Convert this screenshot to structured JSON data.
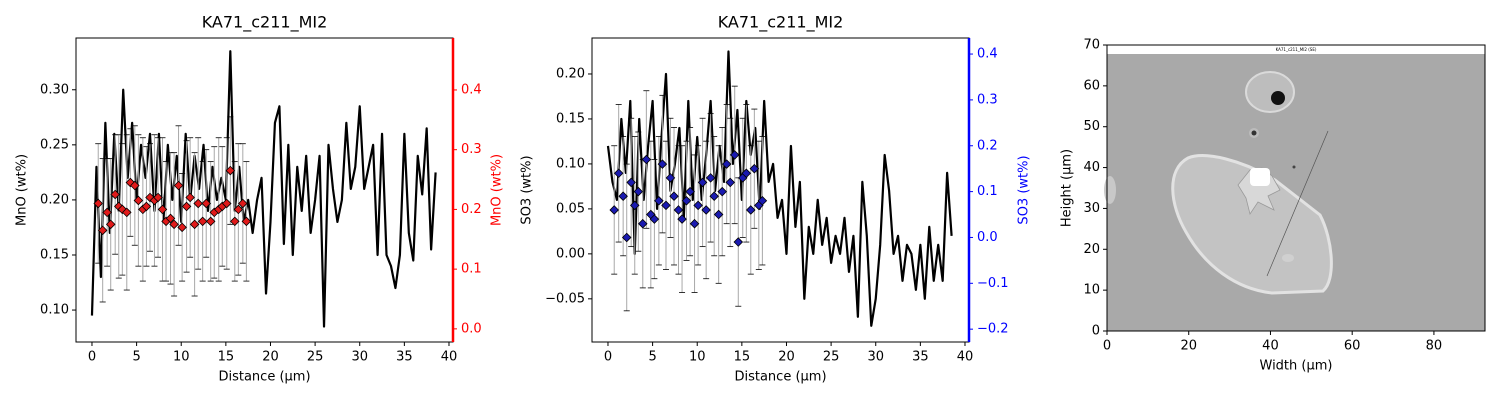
{
  "chart_data": [
    {
      "type": "line",
      "title": "KA71_c211_MI2",
      "xlabel": "Distance (µm)",
      "ylabel": "MnO (wt%)",
      "y2label": "MnO (wt%)",
      "y2color": "#ff0000",
      "x": [
        0,
        0.5,
        1,
        1.5,
        2,
        2.5,
        3,
        3.5,
        4,
        4.5,
        5,
        5.5,
        6,
        6.5,
        7,
        7.5,
        8,
        8.5,
        9,
        9.5,
        10,
        10.5,
        11,
        11.5,
        12,
        12.5,
        13,
        13.5,
        14,
        14.5,
        15,
        15.5,
        16,
        16.5,
        17,
        17.5,
        18,
        18.5,
        19,
        19.5,
        20,
        20.5,
        21,
        21.5,
        22,
        22.5,
        23,
        23.5,
        24,
        24.5,
        25,
        25.5,
        26,
        26.5,
        27,
        27.5,
        28,
        28.5,
        29,
        29.5,
        30,
        30.5,
        31,
        31.5,
        32,
        32.5,
        33,
        33.5,
        34,
        34.5,
        35,
        35.5,
        36,
        36.5,
        37,
        37.5,
        38,
        38.5
      ],
      "xlim": [
        -1.79,
        40.45
      ],
      "xticks": [
        0,
        5,
        10,
        15,
        20,
        25,
        30,
        35,
        40
      ],
      "ylim": [
        0.071,
        0.347
      ],
      "yticks": [
        {
          "value": 0.1,
          "label": "0.10"
        },
        0.15,
        {
          "value": 0.2,
          "label": "0.20"
        },
        0.25,
        {
          "value": 0.3,
          "label": "0.30"
        }
      ],
      "y2lim": [
        -0.022,
        0.487
      ],
      "y2ticks": [
        {
          "value": 0,
          "label": "0.0"
        },
        0.1,
        0.2,
        0.3,
        0.4
      ],
      "series": [
        {
          "color": "#000000",
          "values": [
            0.095,
            0.23,
            0.13,
            0.27,
            0.17,
            0.26,
            0.19,
            0.3,
            0.22,
            0.27,
            0.2,
            0.25,
            0.22,
            0.26,
            0.19,
            0.26,
            0.18,
            0.25,
            0.2,
            0.24,
            0.18,
            0.26,
            0.2,
            0.24,
            0.21,
            0.25,
            0.19,
            0.23,
            0.2,
            0.22,
            0.2,
            0.335,
            0.19,
            0.23,
            0.18,
            0.2,
            0.17,
            0.2,
            0.22,
            0.115,
            0.18,
            0.27,
            0.285,
            0.16,
            0.25,
            0.15,
            0.23,
            0.19,
            0.24,
            0.17,
            0.2,
            0.24,
            0.085,
            0.25,
            0.21,
            0.18,
            0.2,
            0.27,
            0.21,
            0.23,
            0.285,
            0.21,
            0.23,
            0.25,
            0.15,
            0.26,
            0.15,
            0.14,
            0.12,
            0.15,
            0.26,
            0.17,
            0.145,
            0.24,
            0.205,
            0.265,
            0.155,
            0.225
          ]
        },
        {
          "axis": "y2",
          "marker": "diamond",
          "color": "#e01a1a",
          "error_color": "#a8a8a8",
          "x": [
            0.7,
            1.2,
            1.7,
            2.1,
            2.6,
            3.0,
            3.4,
            3.9,
            4.3,
            4.8,
            5.2,
            5.7,
            6.1,
            6.5,
            7.0,
            7.4,
            7.9,
            8.3,
            8.8,
            9.2,
            9.7,
            10.1,
            10.6,
            11.0,
            11.5,
            11.9,
            12.4,
            12.8,
            13.3,
            13.7,
            14.2,
            14.6,
            15.1,
            15.5,
            16.0,
            16.4,
            16.9,
            17.3
          ],
          "values": [
            0.21,
            0.165,
            0.195,
            0.175,
            0.225,
            0.205,
            0.2,
            0.195,
            0.245,
            0.24,
            0.215,
            0.2,
            0.205,
            0.22,
            0.215,
            0.22,
            0.2,
            0.18,
            0.185,
            0.175,
            0.24,
            0.17,
            0.205,
            0.22,
            0.175,
            0.21,
            0.18,
            0.21,
            0.18,
            0.195,
            0.2,
            0.205,
            0.21,
            0.265,
            0.18,
            0.2,
            0.21,
            0.18
          ],
          "errors": [
            0.1,
            0.12,
            0.09,
            0.11,
            0.1,
            0.12,
            0.11,
            0.13,
            0.09,
            0.1,
            0.11,
            0.12,
            0.1,
            0.09,
            0.11,
            0.1,
            0.12,
            0.1,
            0.11,
            0.12,
            0.1,
            0.09,
            0.11,
            0.1,
            0.12,
            0.11,
            0.1,
            0.09,
            0.1,
            0.11,
            0.12,
            0.1,
            0.11,
            0.09,
            0.1,
            0.11,
            0.1,
            0.1
          ]
        }
      ]
    },
    {
      "type": "line",
      "title": "KA71_c211_MI2",
      "xlabel": "Distance (µm)",
      "ylabel": "SO3 (wt%)",
      "y2label": "SO3 (wt%)",
      "y2color": "#0000ff",
      "x": [
        0,
        0.5,
        1,
        1.5,
        2,
        2.5,
        3,
        3.5,
        4,
        4.5,
        5,
        5.5,
        6,
        6.5,
        7,
        7.5,
        8,
        8.5,
        9,
        9.5,
        10,
        10.5,
        11,
        11.5,
        12,
        12.5,
        13,
        13.5,
        14,
        14.5,
        15,
        15.5,
        16,
        16.5,
        17,
        17.5,
        18,
        18.5,
        19,
        19.5,
        20,
        20.5,
        21,
        21.5,
        22,
        22.5,
        23,
        23.5,
        24,
        24.5,
        25,
        25.5,
        26,
        26.5,
        27,
        27.5,
        28,
        28.5,
        29,
        29.5,
        30,
        30.5,
        31,
        31.5,
        32,
        32.5,
        33,
        33.5,
        34,
        34.5,
        35,
        35.5,
        36,
        36.5,
        37,
        37.5,
        38,
        38.5
      ],
      "xlim": [
        -1.79,
        40.45
      ],
      "xticks": [
        0,
        5,
        10,
        15,
        20,
        25,
        30,
        35,
        40
      ],
      "ylim": [
        -0.098,
        0.24
      ],
      "yticks": [
        {
          "value": -0.05,
          "label": "−0.05"
        },
        {
          "value": 0,
          "label": "0.00"
        },
        0.05,
        {
          "value": 0.1,
          "label": "0.10"
        },
        0.15,
        {
          "value": 0.2,
          "label": "0.20"
        }
      ],
      "y2lim": [
        -0.228,
        0.435
      ],
      "y2ticks": [
        {
          "value": -0.2,
          "label": "−0.2"
        },
        {
          "value": -0.1,
          "label": "−0.1"
        },
        {
          "value": 0,
          "label": "0.0"
        },
        0.1,
        0.2,
        0.3,
        0.4
      ],
      "series": [
        {
          "color": "#000000",
          "values": [
            0.12,
            0.08,
            0.06,
            0.15,
            0.09,
            0.17,
            0.0,
            0.15,
            0.06,
            0.12,
            0.17,
            0.05,
            0.13,
            0.2,
            0.07,
            0.1,
            0.14,
            0.04,
            0.17,
            0.06,
            0.13,
            0.06,
            0.11,
            0.17,
            0.07,
            0.12,
            0.08,
            0.225,
            0.1,
            0.16,
            0.06,
            0.17,
            0.11,
            0.14,
            0.05,
            0.17,
            0.08,
            0.1,
            0.04,
            0.06,
            0.0,
            0.12,
            0.03,
            0.08,
            -0.05,
            0.03,
            0.0,
            0.06,
            0.01,
            0.04,
            -0.01,
            0.02,
            0.0,
            0.04,
            -0.02,
            0.02,
            -0.07,
            0.08,
            0.02,
            -0.08,
            -0.05,
            0.01,
            0.11,
            0.07,
            0.0,
            0.02,
            -0.03,
            0.01,
            0.0,
            -0.04,
            0.01,
            -0.05,
            0.03,
            -0.03,
            0.01,
            -0.03,
            0.09,
            0.02
          ]
        },
        {
          "axis": "y2",
          "marker": "diamond",
          "color": "#1a1ab0",
          "error_color": "#a8a8a8",
          "x": [
            0.7,
            1.2,
            1.7,
            2.1,
            2.6,
            3.0,
            3.4,
            3.9,
            4.3,
            4.8,
            5.2,
            5.7,
            6.1,
            6.5,
            7.0,
            7.4,
            7.9,
            8.3,
            8.8,
            9.2,
            9.7,
            10.1,
            10.6,
            11.0,
            11.5,
            11.9,
            12.4,
            12.8,
            13.3,
            13.7,
            14.2,
            14.6,
            15.1,
            15.5,
            16.0,
            16.4,
            16.9,
            17.3
          ],
          "values": [
            0.06,
            0.14,
            0.09,
            0.0,
            0.12,
            0.07,
            0.1,
            0.03,
            0.17,
            0.05,
            0.04,
            0.08,
            0.16,
            0.07,
            0.13,
            0.09,
            0.06,
            0.04,
            0.08,
            0.1,
            0.03,
            0.07,
            0.12,
            0.06,
            0.13,
            0.09,
            0.05,
            0.1,
            0.16,
            0.12,
            0.18,
            -0.01,
            0.13,
            0.14,
            0.06,
            0.15,
            0.07,
            0.08
          ],
          "errors": [
            0.14,
            0.15,
            0.13,
            0.16,
            0.14,
            0.15,
            0.13,
            0.14,
            0.15,
            0.16,
            0.13,
            0.14,
            0.15,
            0.14,
            0.13,
            0.15,
            0.14,
            0.16,
            0.13,
            0.14,
            0.15,
            0.13,
            0.14,
            0.15,
            0.14,
            0.13,
            0.15,
            0.14,
            0.13,
            0.14,
            0.15,
            0.14,
            0.13,
            0.15,
            0.14,
            0.13,
            0.14,
            0.14
          ]
        }
      ]
    },
    {
      "type": "image",
      "caption": "KA71_c211_MI2 (SE)",
      "xlabel": "Width (µm)",
      "ylabel": "Height (µm)",
      "xlim": [
        0,
        92.5
      ],
      "xticks": [
        0,
        20,
        40,
        60,
        80
      ],
      "ylim": [
        0,
        70
      ],
      "yticks": [
        0,
        10,
        20,
        30,
        40,
        50,
        60,
        70
      ]
    }
  ]
}
